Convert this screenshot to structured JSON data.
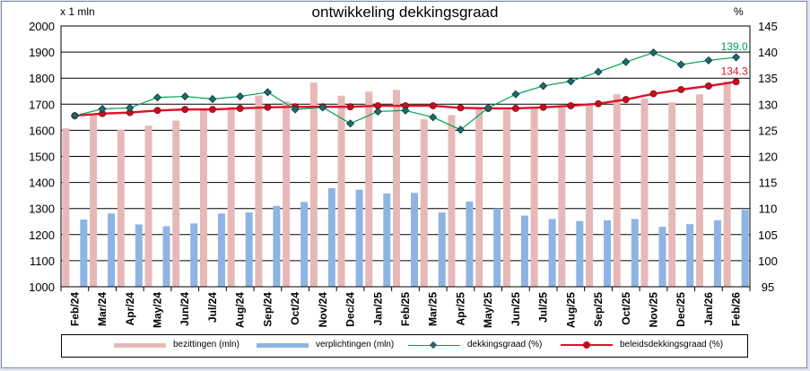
{
  "chart_data": {
    "type": "bar",
    "title": "ontwikkeling dekkingsgraad",
    "y_left_unit": "x 1 mln",
    "y_right_unit": "%",
    "ylim_left": [
      1000,
      2000
    ],
    "ylim_right": [
      95,
      145
    ],
    "yticks_left": [
      "1000",
      "1100",
      "1200",
      "1300",
      "1400",
      "1500",
      "1600",
      "1700",
      "1800",
      "1900",
      "2000"
    ],
    "yticks_right": [
      "95",
      "100",
      "105",
      "110",
      "115",
      "120",
      "125",
      "130",
      "135",
      "140",
      "145"
    ],
    "categories": [
      "Feb/24",
      "Mar/24",
      "Apr/24",
      "May/24",
      "Jun/24",
      "Jul/24",
      "Aug/24",
      "Sep/24",
      "Oct/24",
      "Nov/24",
      "Dec/24",
      "Jan/25",
      "Feb/25",
      "Mar/25",
      "Apr/25",
      "May/25",
      "Jun/25",
      "Jul/25",
      "Aug/25",
      "Sep/25",
      "Oct/25",
      "Nov/25",
      "Dec/25",
      "Jan/26",
      "Feb/26"
    ],
    "grid": true,
    "legend_position": "bottom",
    "series": [
      {
        "name": "bezittingen (mln)",
        "kind": "bar",
        "axis": "left",
        "color": "#e6b9b8",
        "values": [
          1608,
          1662,
          1602,
          1618,
          1637,
          1678,
          1690,
          1733,
          1710,
          1783,
          1733,
          1748,
          1755,
          1642,
          1658,
          1688,
          1678,
          1688,
          1688,
          1702,
          1738,
          1722,
          1707,
          1738,
          1788
        ]
      },
      {
        "name": "verplichtingen (mln)",
        "kind": "bar",
        "axis": "left",
        "color": "#8eb4e3",
        "values": [
          1258,
          1281,
          1239,
          1232,
          1243,
          1281,
          1285,
          1310,
          1325,
          1378,
          1372,
          1358,
          1360,
          1285,
          1327,
          1300,
          1273,
          1260,
          1252,
          1255,
          1260,
          1230,
          1240,
          1255,
          1295
        ]
      },
      {
        "name": "dekkingsgraad (%)",
        "kind": "line",
        "axis": "right",
        "color": "#00a050",
        "marker": "diamond",
        "values": [
          127.8,
          129.1,
          129.3,
          131.3,
          131.5,
          131.0,
          131.5,
          132.3,
          129.0,
          129.4,
          126.3,
          128.6,
          128.8,
          127.5,
          125.1,
          129.3,
          131.9,
          133.5,
          134.4,
          136.2,
          138.1,
          139.9,
          137.6,
          138.4,
          139.0
        ],
        "last_label": "139.0"
      },
      {
        "name": "beleidsdekkingsgraad (%)",
        "kind": "line",
        "axis": "right",
        "color": "#e0102a",
        "marker": "circle",
        "values": [
          127.8,
          128.2,
          128.4,
          128.8,
          129.0,
          129.0,
          129.2,
          129.4,
          129.5,
          129.5,
          129.5,
          129.7,
          129.7,
          129.7,
          129.3,
          129.2,
          129.2,
          129.4,
          129.7,
          130.1,
          130.9,
          132.0,
          132.8,
          133.5,
          134.3
        ],
        "last_label": "134.3"
      }
    ]
  }
}
